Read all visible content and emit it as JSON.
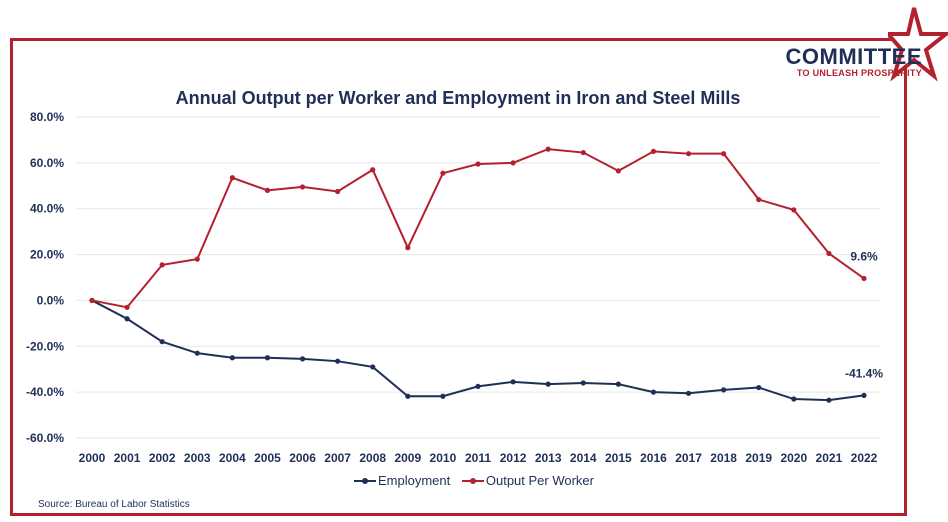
{
  "brand": {
    "name": "COMMITTEE",
    "tagline": "TO UNLEASH PROSPERITY",
    "navy": "#1f2f57",
    "red": "#b5202e"
  },
  "source": "Source: Bureau of Labor Statistics",
  "chart_data": {
    "type": "line",
    "title": "Annual Output per Worker and Employment in Iron and Steel Mills",
    "xlabel": "",
    "ylabel": "",
    "categories": [
      "2000",
      "2001",
      "2002",
      "2003",
      "2004",
      "2005",
      "2006",
      "2007",
      "2008",
      "2009",
      "2010",
      "2011",
      "2012",
      "2013",
      "2014",
      "2015",
      "2016",
      "2017",
      "2018",
      "2019",
      "2020",
      "2021",
      "2022"
    ],
    "yticks": [
      "80.0%",
      "60.0%",
      "40.0%",
      "20.0%",
      "0.0%",
      "-20.0%",
      "-40.0%",
      "-60.0%"
    ],
    "ylim": [
      -60,
      80
    ],
    "grid": true,
    "legend_position": "bottom",
    "series": [
      {
        "name": "Employment",
        "color": "#1f2f57",
        "values": [
          0,
          -8,
          -18,
          -23,
          -25,
          -25,
          -25.5,
          -26.5,
          -29,
          -41.8,
          -41.8,
          -37.5,
          -35.5,
          -36.5,
          -36,
          -36.5,
          -40,
          -40.5,
          -39,
          -38,
          -43,
          -43.5,
          -41.4
        ],
        "end_label": "-41.4%"
      },
      {
        "name": "Output Per Worker",
        "color": "#b5202e",
        "values": [
          0,
          -3,
          15.5,
          18,
          53.5,
          48,
          49.5,
          47.5,
          57,
          23,
          55.5,
          59.5,
          60,
          66,
          64.5,
          56.5,
          65,
          64,
          64,
          44,
          39.5,
          20.5,
          9.6
        ],
        "end_label": "9.6%"
      }
    ]
  }
}
